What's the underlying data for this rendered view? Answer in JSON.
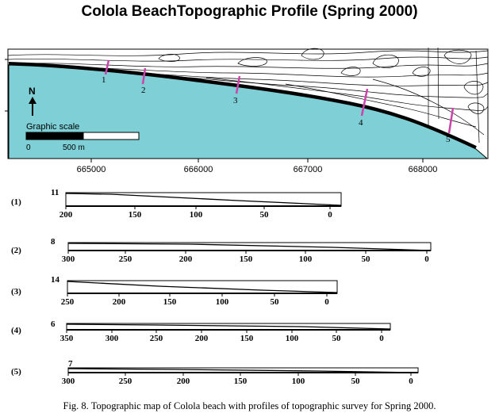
{
  "title": "Colola BeachTopographic Profile (Spring 2000)",
  "caption": "Fig. 8. Topographic map of Colola beach with profiles of topographic survey for Spring 2000.",
  "map": {
    "north_label": "N",
    "scale_label": "Graphic scale",
    "scale_ticks": [
      "0",
      "500 m"
    ],
    "x_ticks": [
      "665000",
      "666000",
      "667000",
      "668000"
    ],
    "profile_markers": [
      "1",
      "2",
      "3",
      "4",
      "5"
    ],
    "colors": {
      "sea": "#7ecfd6",
      "contour": "#000000",
      "profile_line": "#cc44aa"
    }
  },
  "profiles": [
    {
      "label": "(1)",
      "height_label": "11",
      "ticks": [
        "200",
        "150",
        "100",
        "50",
        "0"
      ]
    },
    {
      "label": "(2)",
      "height_label": "8",
      "ticks": [
        "300",
        "250",
        "200",
        "150",
        "100",
        "50",
        "0"
      ]
    },
    {
      "label": "(3)",
      "height_label": "14",
      "ticks": [
        "250",
        "200",
        "150",
        "100",
        "50",
        "0"
      ]
    },
    {
      "label": "(4)",
      "height_label": "6",
      "ticks": [
        "350",
        "300",
        "250",
        "200",
        "150",
        "100",
        "50",
        "0"
      ]
    },
    {
      "label": "(5)",
      "height_label": "7",
      "ticks": [
        "300",
        "250",
        "200",
        "150",
        "100",
        "50",
        "0"
      ]
    }
  ]
}
